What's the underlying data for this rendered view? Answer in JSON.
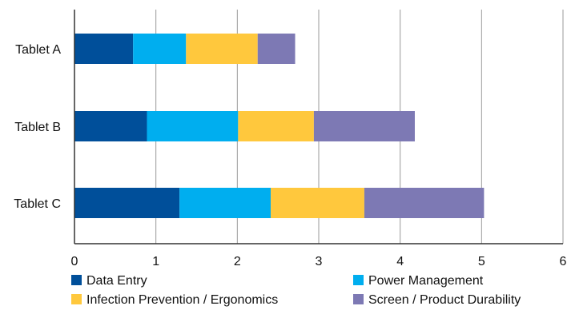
{
  "chart_data": {
    "type": "bar",
    "orientation": "horizontal",
    "stacked": true,
    "categories": [
      "Tablet A",
      "Tablet B",
      "Tablet C"
    ],
    "series": [
      {
        "name": "Data Entry",
        "values": [
          0.72,
          0.89,
          1.29
        ],
        "color": "#004f9a"
      },
      {
        "name": "Power Management",
        "values": [
          0.65,
          1.12,
          1.12
        ],
        "color": "#00aeef"
      },
      {
        "name": "Infection Prevention / Ergonomics",
        "values": [
          0.88,
          0.93,
          1.15
        ],
        "color": "#ffc83d"
      },
      {
        "name": "Screen / Product Durability",
        "values": [
          0.46,
          1.24,
          1.47
        ],
        "color": "#7d79b4"
      }
    ],
    "title": "",
    "xlabel": "",
    "ylabel": "",
    "xlim": [
      0,
      6
    ],
    "x_ticks": [
      "0",
      "1",
      "2",
      "3",
      "4",
      "5",
      "6"
    ],
    "grid": "vertical",
    "legend_position": "bottom"
  }
}
